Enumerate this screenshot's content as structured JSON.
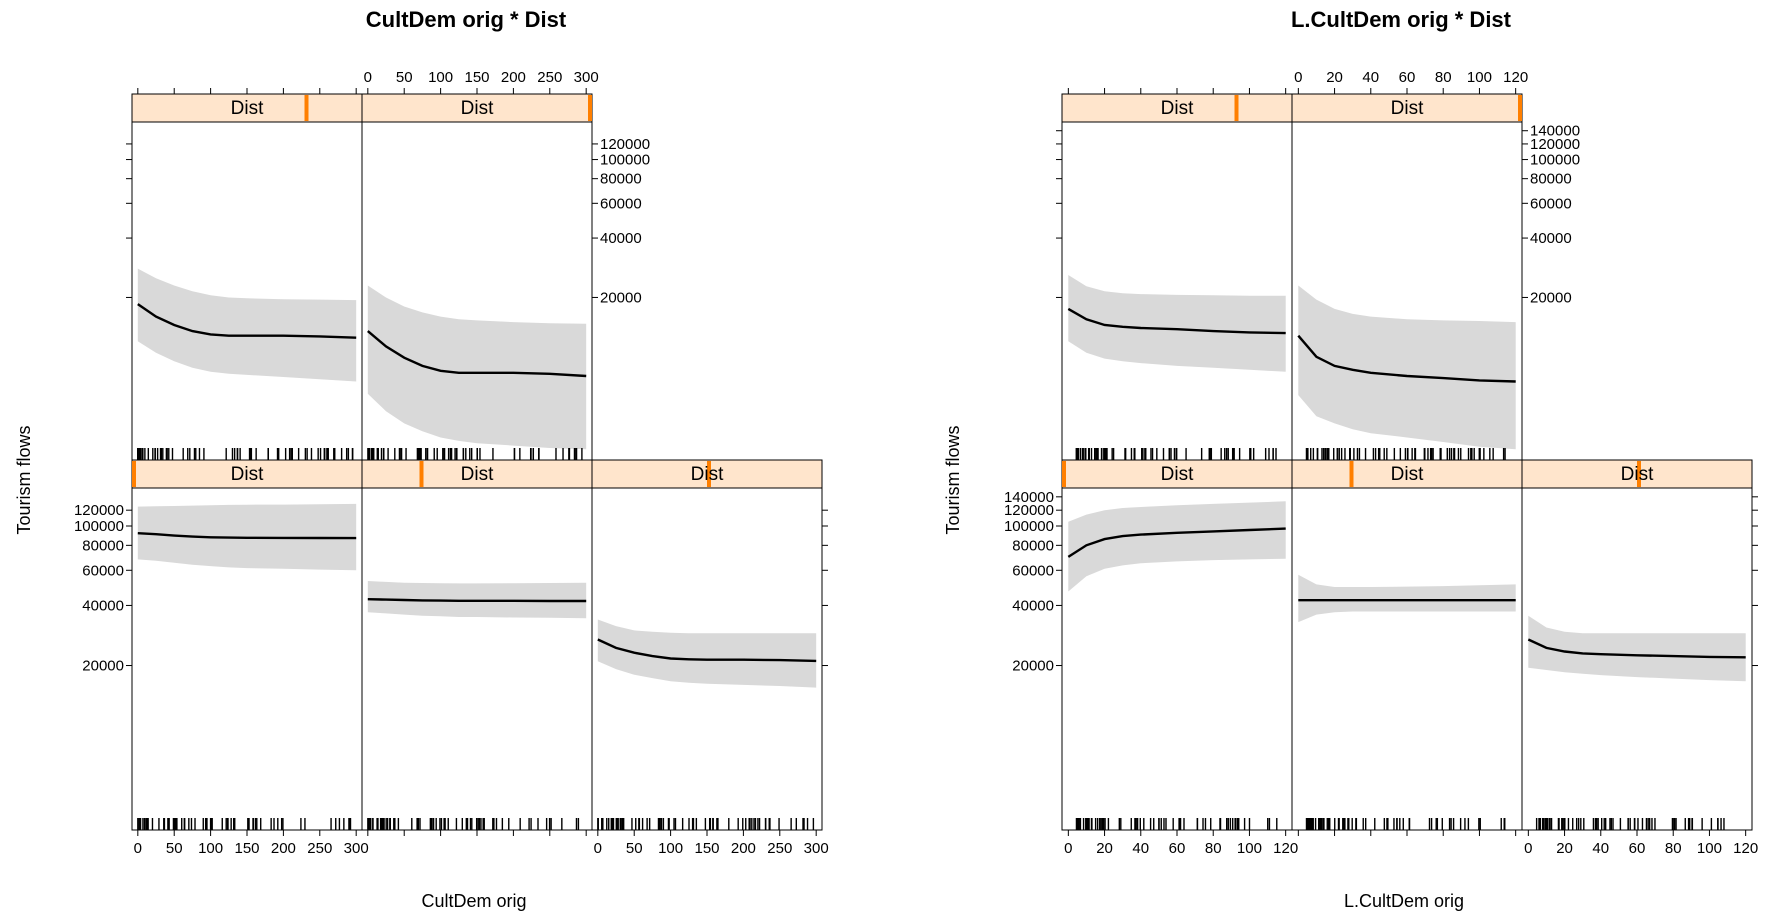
{
  "figure": {
    "background": "#ffffff",
    "strip_fill": "#ffe5cc",
    "strip_marker_color": "#ff7f00",
    "band_fill": "#d9d9d9",
    "line_color": "#000000"
  },
  "chart_data": [
    {
      "type": "line",
      "title": "CultDem orig * Dist",
      "xlabel": "CultDem orig",
      "ylabel": "Tourism flows",
      "ylog": true,
      "xlim": [
        -8,
        308
      ],
      "ylim": [
        3000,
        155000
      ],
      "x_ticks": [
        0,
        50,
        100,
        150,
        200,
        250,
        300
      ],
      "x_tick_labels": [
        "0",
        "50",
        "100",
        "150",
        "200",
        "250",
        "300"
      ],
      "y_ticks": [
        20000,
        40000,
        60000,
        80000,
        100000,
        120000
      ],
      "y_tick_labels": [
        "20000",
        "40000",
        "60000",
        "80000",
        "100000",
        "120000"
      ],
      "strip_label": "Dist",
      "band": "confidence",
      "rug": "present",
      "x": [
        0,
        25,
        50,
        75,
        100,
        125,
        150,
        200,
        250,
        300
      ],
      "panels": [
        {
          "row": 2,
          "col": 0,
          "strip_value": 0.0,
          "fit": [
            92000,
            91000,
            89500,
            88500,
            87800,
            87500,
            87300,
            87200,
            87100,
            87000
          ],
          "lower": [
            68000,
            67000,
            65500,
            64000,
            63000,
            62000,
            61500,
            61000,
            60500,
            60000
          ],
          "upper": [
            125000,
            125500,
            126000,
            126500,
            127000,
            127500,
            127800,
            128000,
            128500,
            129000
          ]
        },
        {
          "row": 2,
          "col": 1,
          "strip_value": 0.25,
          "fit": [
            43000,
            42800,
            42600,
            42400,
            42300,
            42200,
            42200,
            42200,
            42100,
            42100
          ],
          "lower": [
            37000,
            36500,
            36000,
            35500,
            35300,
            35000,
            35000,
            34800,
            34700,
            34500
          ],
          "upper": [
            53000,
            52500,
            52000,
            51800,
            51700,
            51600,
            51600,
            51700,
            51800,
            52000
          ]
        },
        {
          "row": 2,
          "col": 2,
          "strip_value": 0.5,
          "fit": [
            27000,
            24500,
            23200,
            22300,
            21700,
            21500,
            21400,
            21400,
            21300,
            21100
          ],
          "lower": [
            21000,
            19200,
            18000,
            17300,
            16700,
            16400,
            16200,
            16000,
            15800,
            15500
          ],
          "upper": [
            34000,
            31500,
            30000,
            29500,
            29200,
            29000,
            29000,
            29000,
            29000,
            29000
          ]
        },
        {
          "row": 1,
          "col": 0,
          "strip_value": 0.75,
          "fit": [
            18500,
            16000,
            14500,
            13500,
            13000,
            12800,
            12800,
            12800,
            12700,
            12500
          ],
          "lower": [
            12000,
            10500,
            9500,
            8800,
            8400,
            8200,
            8100,
            7900,
            7700,
            7500
          ],
          "upper": [
            28000,
            25000,
            23000,
            21500,
            20500,
            20000,
            19800,
            19600,
            19500,
            19400
          ]
        },
        {
          "row": 1,
          "col": 1,
          "strip_value": 1.0,
          "fit": [
            13500,
            11300,
            9900,
            9000,
            8500,
            8300,
            8300,
            8300,
            8200,
            8000
          ],
          "lower": [
            6500,
            5300,
            4600,
            4200,
            3900,
            3750,
            3650,
            3550,
            3450,
            3400
          ],
          "upper": [
            23000,
            20000,
            18000,
            16800,
            16000,
            15500,
            15300,
            15000,
            14800,
            14700
          ]
        }
      ]
    },
    {
      "type": "line",
      "title": "L.CultDem orig * Dist",
      "xlabel": "L.CultDem orig",
      "ylabel": "Tourism flows",
      "ylog": true,
      "xlim": [
        -3.5,
        123.5
      ],
      "ylim": [
        3000,
        155000
      ],
      "x_ticks": [
        0,
        20,
        40,
        60,
        80,
        100,
        120
      ],
      "x_tick_labels": [
        "0",
        "20",
        "40",
        "60",
        "80",
        "100",
        "120"
      ],
      "y_ticks": [
        20000,
        40000,
        60000,
        80000,
        100000,
        120000,
        140000
      ],
      "y_tick_labels": [
        "20000",
        "40000",
        "60000",
        "80000",
        "100000",
        "120000",
        "140000"
      ],
      "strip_label": "Dist",
      "band": "confidence",
      "rug": "present",
      "x": [
        0,
        10,
        20,
        30,
        40,
        60,
        80,
        100,
        120
      ],
      "panels": [
        {
          "row": 2,
          "col": 0,
          "strip_value": 0.0,
          "fit": [
            70000,
            80000,
            86000,
            89000,
            90500,
            92500,
            94000,
            95500,
            97000
          ],
          "lower": [
            47000,
            56000,
            61000,
            63500,
            65000,
            66500,
            67500,
            68000,
            68500
          ],
          "upper": [
            105000,
            114000,
            120000,
            123000,
            124500,
            127000,
            129000,
            131000,
            133000
          ]
        },
        {
          "row": 2,
          "col": 1,
          "strip_value": 0.25,
          "fit": [
            42500,
            42500,
            42500,
            42500,
            42500,
            42500,
            42500,
            42500,
            42500
          ],
          "lower": [
            33000,
            36000,
            37000,
            37300,
            37300,
            37300,
            37300,
            37300,
            37300
          ],
          "upper": [
            57000,
            51000,
            49500,
            49500,
            49500,
            49700,
            50000,
            50500,
            51000
          ]
        },
        {
          "row": 2,
          "col": 2,
          "strip_value": 0.5,
          "fit": [
            27000,
            24500,
            23500,
            23000,
            22800,
            22500,
            22300,
            22100,
            22000
          ],
          "lower": [
            19500,
            19000,
            18500,
            18200,
            17900,
            17500,
            17200,
            16900,
            16700
          ],
          "upper": [
            35500,
            31000,
            29500,
            29000,
            29000,
            29000,
            29000,
            29000,
            29000
          ]
        },
        {
          "row": 1,
          "col": 0,
          "strip_value": 0.75,
          "fit": [
            17500,
            15500,
            14500,
            14200,
            14000,
            13800,
            13500,
            13300,
            13200
          ],
          "lower": [
            12000,
            10500,
            9800,
            9500,
            9300,
            9000,
            8800,
            8600,
            8400
          ],
          "upper": [
            26000,
            22800,
            21500,
            21000,
            20800,
            20600,
            20500,
            20400,
            20400
          ]
        },
        {
          "row": 1,
          "col": 1,
          "strip_value": 1.0,
          "fit": [
            12800,
            10000,
            9000,
            8600,
            8300,
            8000,
            7800,
            7600,
            7500
          ],
          "lower": [
            6400,
            5000,
            4600,
            4300,
            4100,
            3900,
            3700,
            3500,
            3400
          ],
          "upper": [
            23000,
            19500,
            17500,
            16500,
            16000,
            15500,
            15300,
            15200,
            15000
          ]
        }
      ]
    }
  ]
}
